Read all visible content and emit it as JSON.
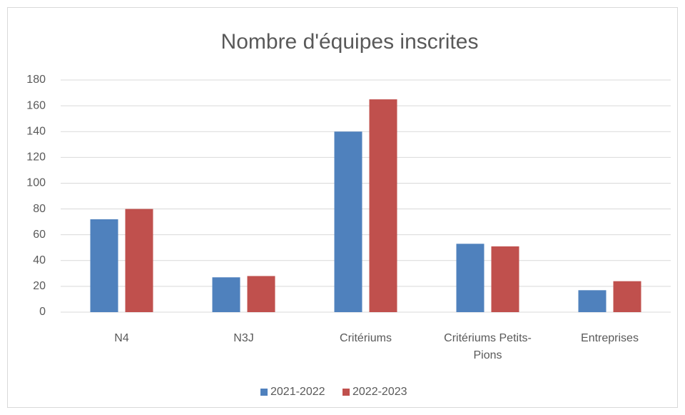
{
  "chart_data": {
    "type": "bar",
    "title": "Nombre d'équipes inscrites",
    "categories": [
      "N4",
      "N3J",
      "Critériums",
      "Critériums Petits-Pions",
      "Entreprises"
    ],
    "series": [
      {
        "name": "2021-2022",
        "color": "#4f81bd",
        "values": [
          72,
          27,
          140,
          53,
          17
        ]
      },
      {
        "name": "2022-2023",
        "color": "#c0504d",
        "values": [
          80,
          28,
          165,
          51,
          24
        ]
      }
    ],
    "ylim": [
      0,
      180
    ],
    "yticks": [
      0,
      20,
      40,
      60,
      80,
      100,
      120,
      140,
      160,
      180
    ],
    "grid": true,
    "legend": "bottom"
  }
}
